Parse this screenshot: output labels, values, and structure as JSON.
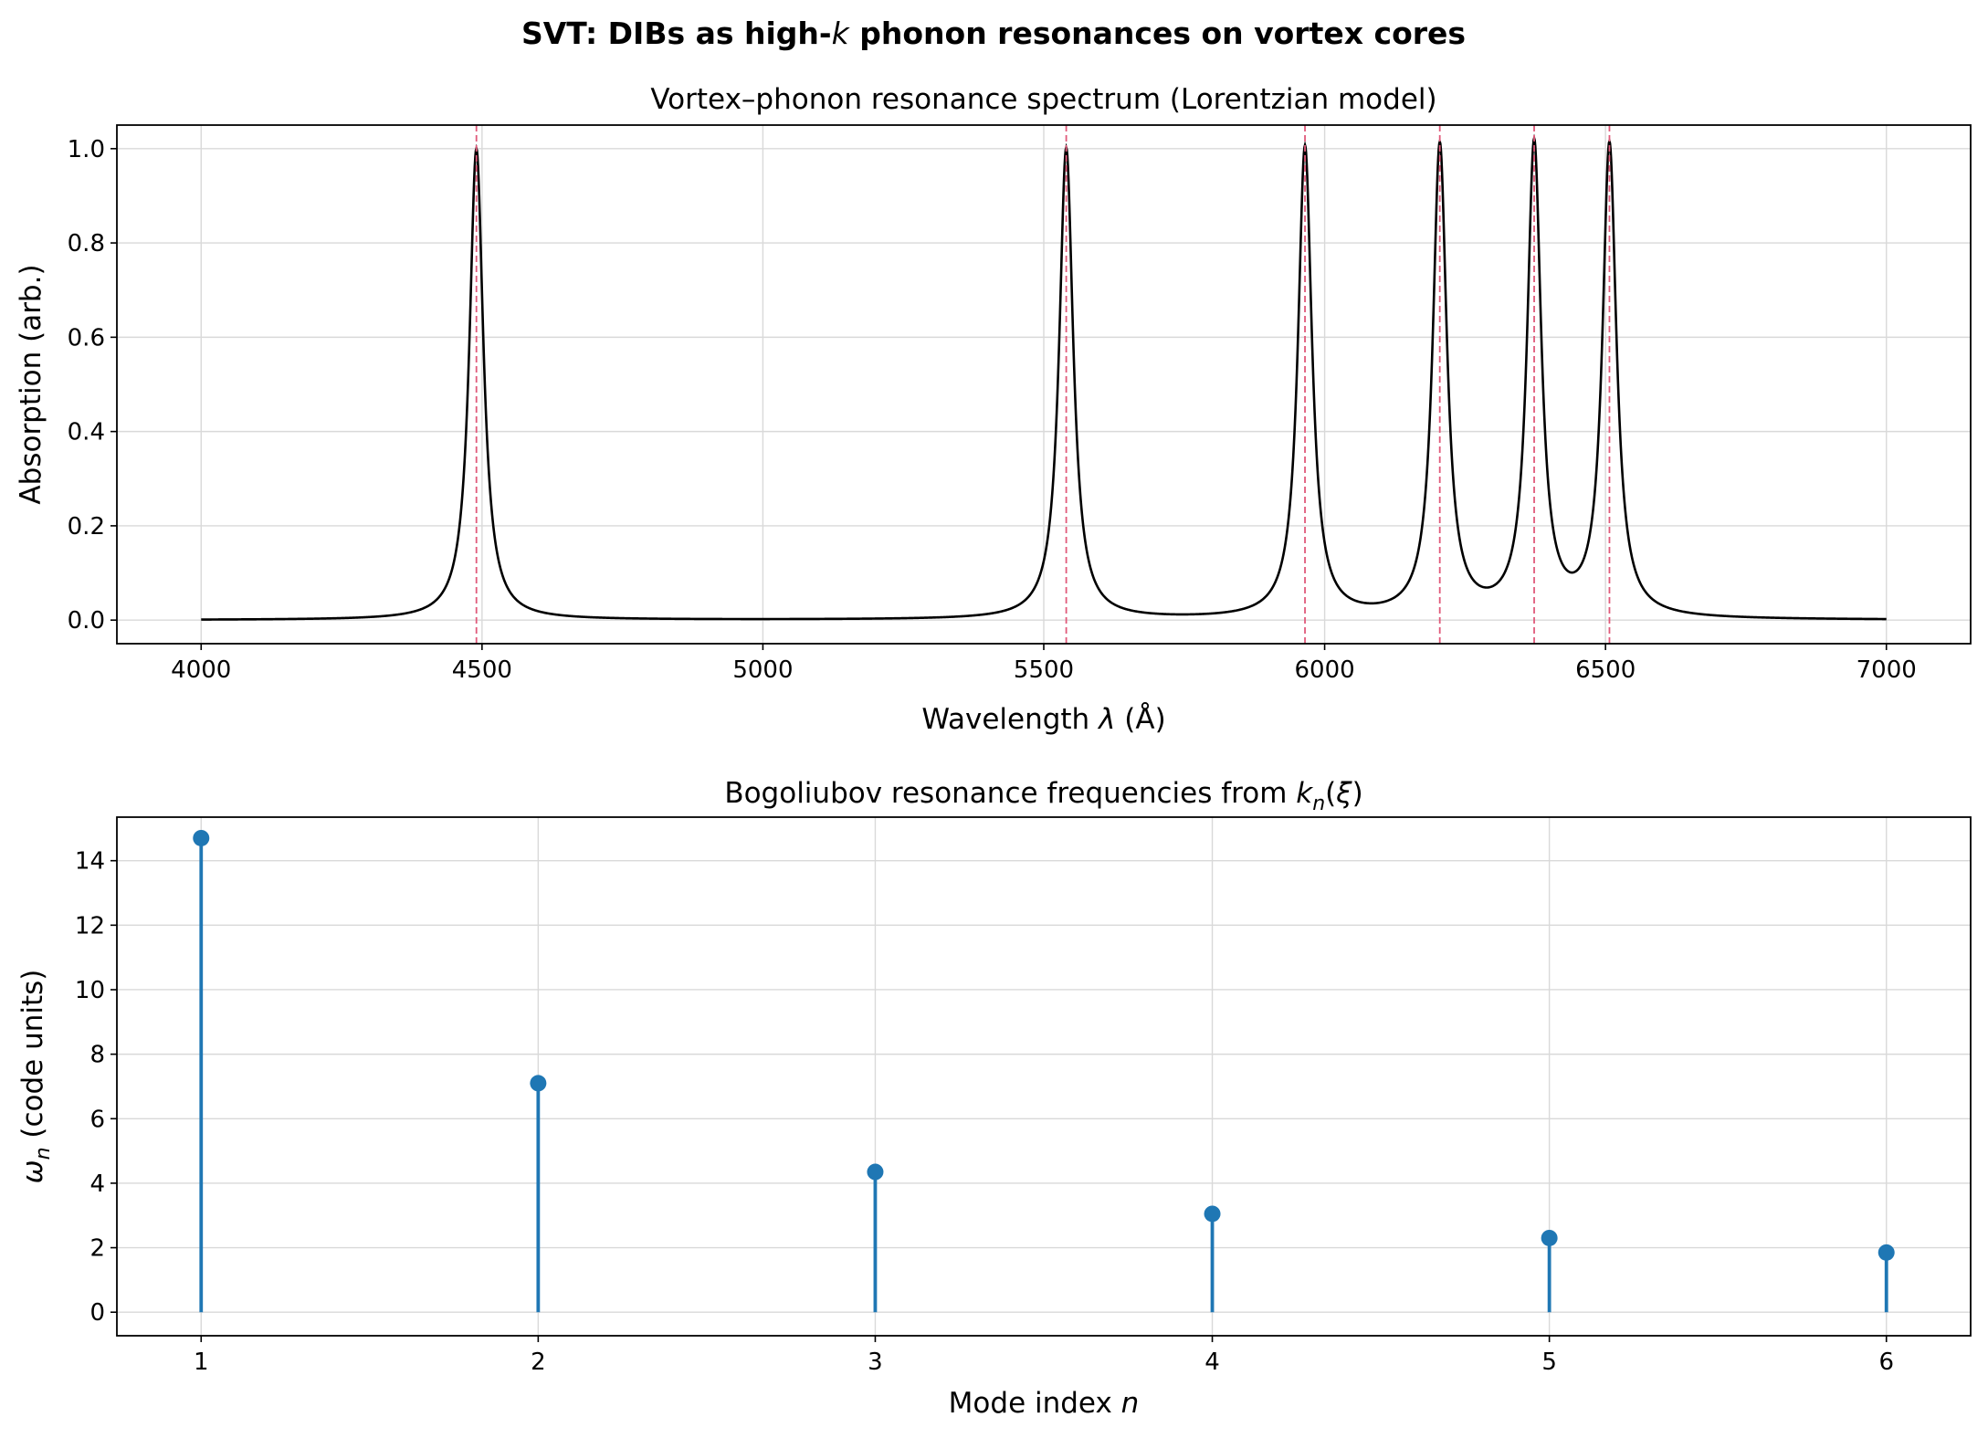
{
  "figure": {
    "suptitle": "SVT: DIBs as high-k phonon resonances on vortex cores",
    "suptitle_parts": [
      "SVT: DIBs as high-",
      "k",
      " phonon resonances on vortex cores"
    ]
  },
  "chart_data": [
    {
      "type": "line",
      "title": "Vortex–phonon resonance spectrum (Lorentzian model)",
      "xlabel": "Wavelength λ  (Å)",
      "xlabel_parts": [
        "Wavelength ",
        "λ",
        "  (Å)"
      ],
      "ylabel": "Absorption (arb.)",
      "xlim": [
        3850,
        7150
      ],
      "ylim": [
        -0.05,
        1.05
      ],
      "xticks": [
        4000,
        4500,
        5000,
        5500,
        6000,
        6500,
        7000
      ],
      "yticks": [
        0.0,
        0.2,
        0.4,
        0.6,
        0.8,
        1.0
      ],
      "ytick_labels": [
        "0.0",
        "0.2",
        "0.4",
        "0.6",
        "0.8",
        "1.0"
      ],
      "grid": true,
      "series": [
        {
          "kind": "lorentzian-sum",
          "x_range": [
            4000,
            7000
          ],
          "color": "#000000",
          "centers": [
            4490,
            5540,
            5965,
            6205,
            6373,
            6507
          ],
          "half_width": 15,
          "amplitude": 1.0
        },
        {
          "kind": "vertical-markers",
          "x": [
            4490,
            5540,
            5965,
            6205,
            6373,
            6507
          ],
          "color": "#e05a7a"
        }
      ]
    },
    {
      "type": "scatter",
      "style": "stem",
      "title": "Bogoliubov resonance frequencies from k_n(ξ)",
      "title_parts": [
        "Bogoliubov resonance frequencies from ",
        "k",
        "n",
        "(",
        "ξ",
        ")"
      ],
      "xlabel": "Mode index n",
      "xlabel_parts": [
        "Mode index ",
        "n"
      ],
      "ylabel": "ω_n  (code units)",
      "ylabel_parts": [
        "ω",
        "n",
        "  (code units)"
      ],
      "xlim": [
        0.75,
        6.25
      ],
      "ylim": [
        -0.73,
        15.35
      ],
      "xticks": [
        1,
        2,
        3,
        4,
        5,
        6
      ],
      "yticks": [
        0,
        2,
        4,
        6,
        8,
        10,
        12,
        14
      ],
      "grid": true,
      "color": "#1f77b4",
      "x": [
        1,
        2,
        3,
        4,
        5,
        6
      ],
      "values": [
        14.7,
        7.1,
        4.35,
        3.05,
        2.3,
        1.85
      ]
    }
  ]
}
